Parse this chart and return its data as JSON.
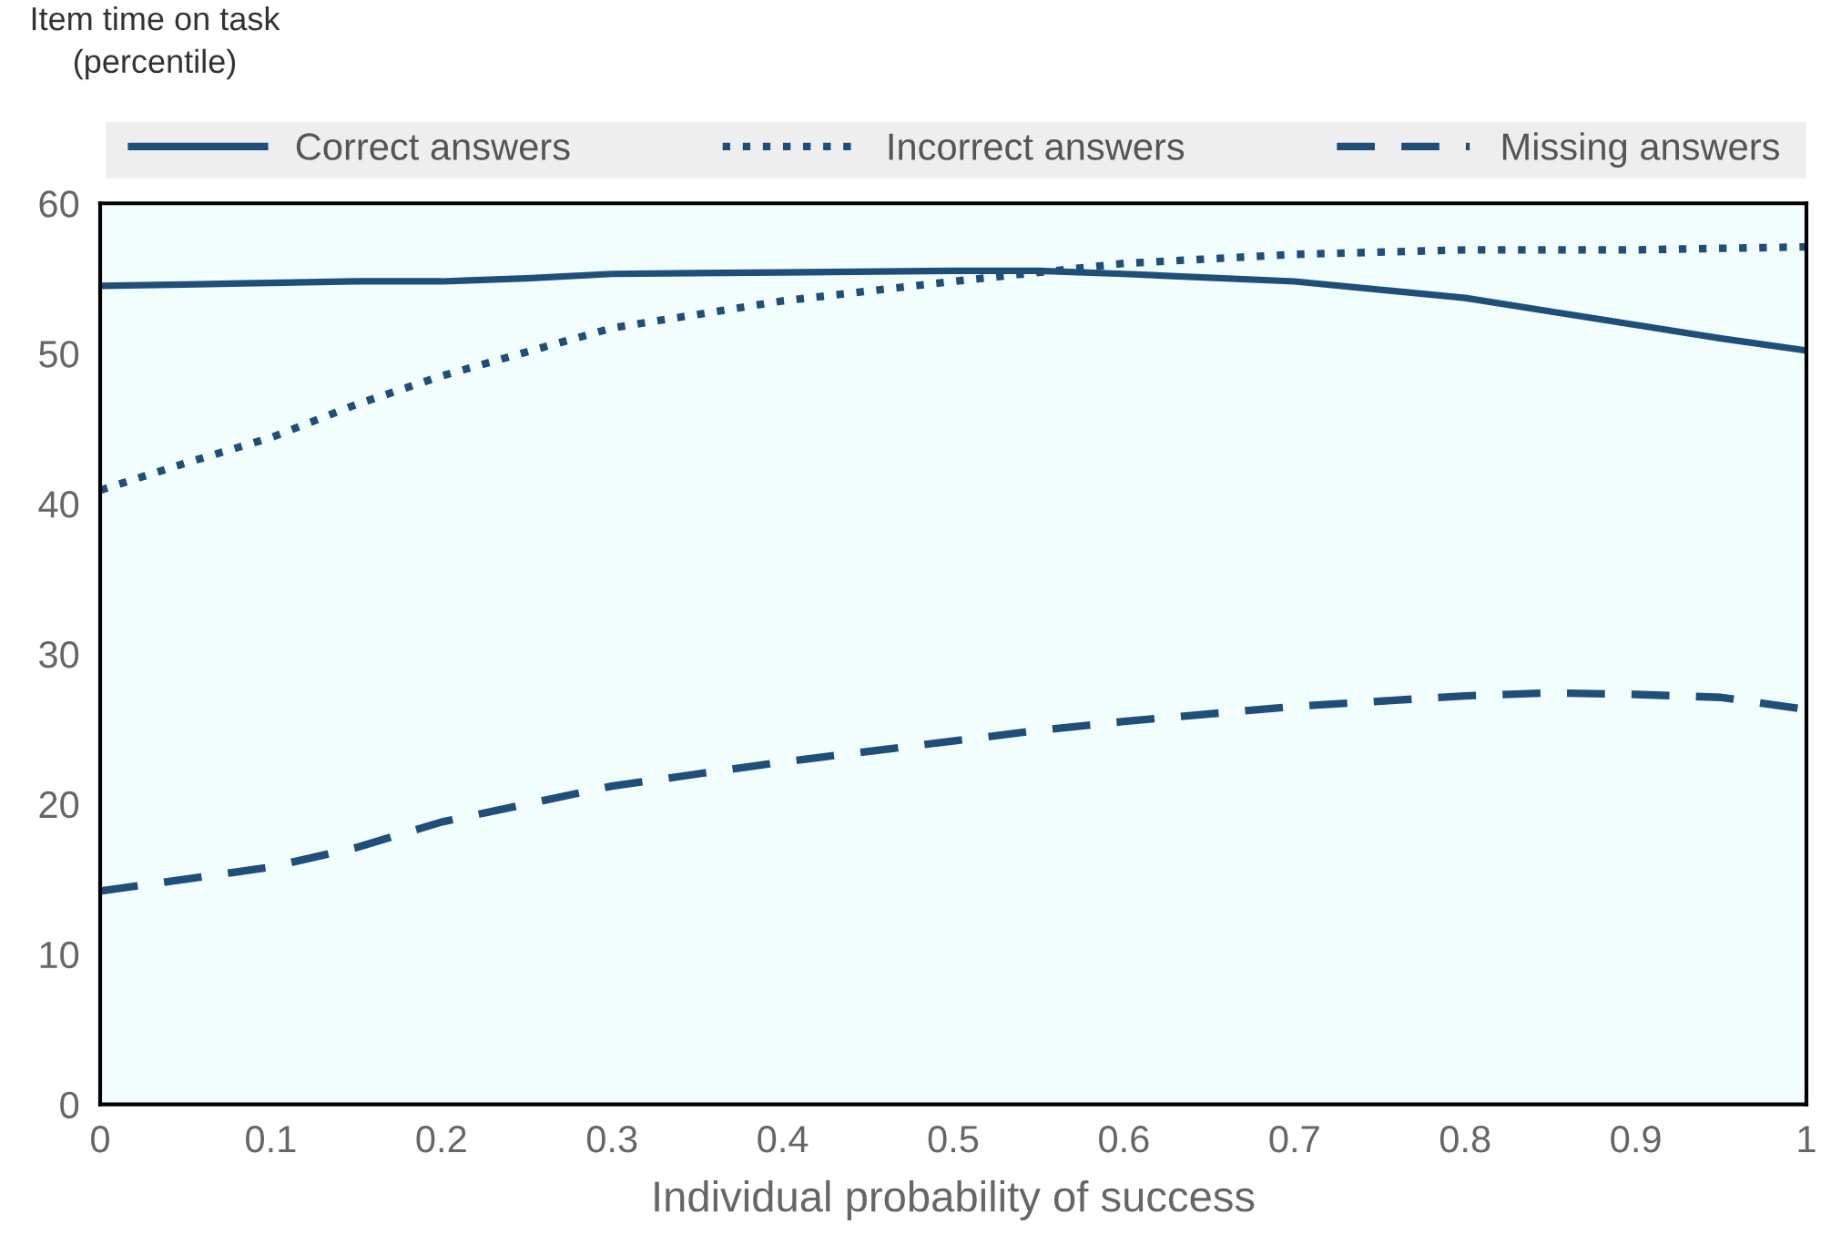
{
  "chart_data": {
    "type": "line",
    "xlabel": "Individual probability of success",
    "ylabel": "Item time on task\n(percentile)",
    "x": [
      0,
      0.05,
      0.1,
      0.15,
      0.2,
      0.25,
      0.3,
      0.4,
      0.5,
      0.55,
      0.6,
      0.7,
      0.8,
      0.85,
      0.9,
      0.95,
      1
    ],
    "series": [
      {
        "name": "Correct answers",
        "color": "#1f4e79",
        "line_style": "solid",
        "values": [
          54.5,
          54.6,
          54.7,
          54.8,
          54.8,
          55.0,
          55.3,
          55.4,
          55.5,
          55.5,
          55.3,
          54.8,
          53.7,
          52.8,
          51.9,
          51.0,
          50.2
        ]
      },
      {
        "name": "Incorrect answers",
        "color": "#1f4e79",
        "line_style": "dotted",
        "values": [
          40.9,
          42.7,
          44.4,
          46.6,
          48.5,
          50.1,
          51.7,
          53.5,
          54.8,
          55.4,
          56.0,
          56.6,
          56.9,
          56.9,
          56.9,
          57.0,
          57.1
        ]
      },
      {
        "name": "Missing answers",
        "color": "#1f4e79",
        "line_style": "dashed",
        "values": [
          14.2,
          15.0,
          15.8,
          17.1,
          18.8,
          20.0,
          21.2,
          22.8,
          24.2,
          24.9,
          25.5,
          26.5,
          27.2,
          27.4,
          27.3,
          27.1,
          26.3
        ]
      }
    ],
    "xlim": [
      0,
      1
    ],
    "xticks": [
      0,
      0.1,
      0.2,
      0.3,
      0.4,
      0.5,
      0.6,
      0.7,
      0.8,
      0.9,
      1
    ],
    "ylim": [
      0,
      60
    ],
    "yticks": [
      0,
      10,
      20,
      30,
      40,
      50,
      60
    ],
    "grid": false,
    "legend": "top",
    "marker": "none"
  }
}
